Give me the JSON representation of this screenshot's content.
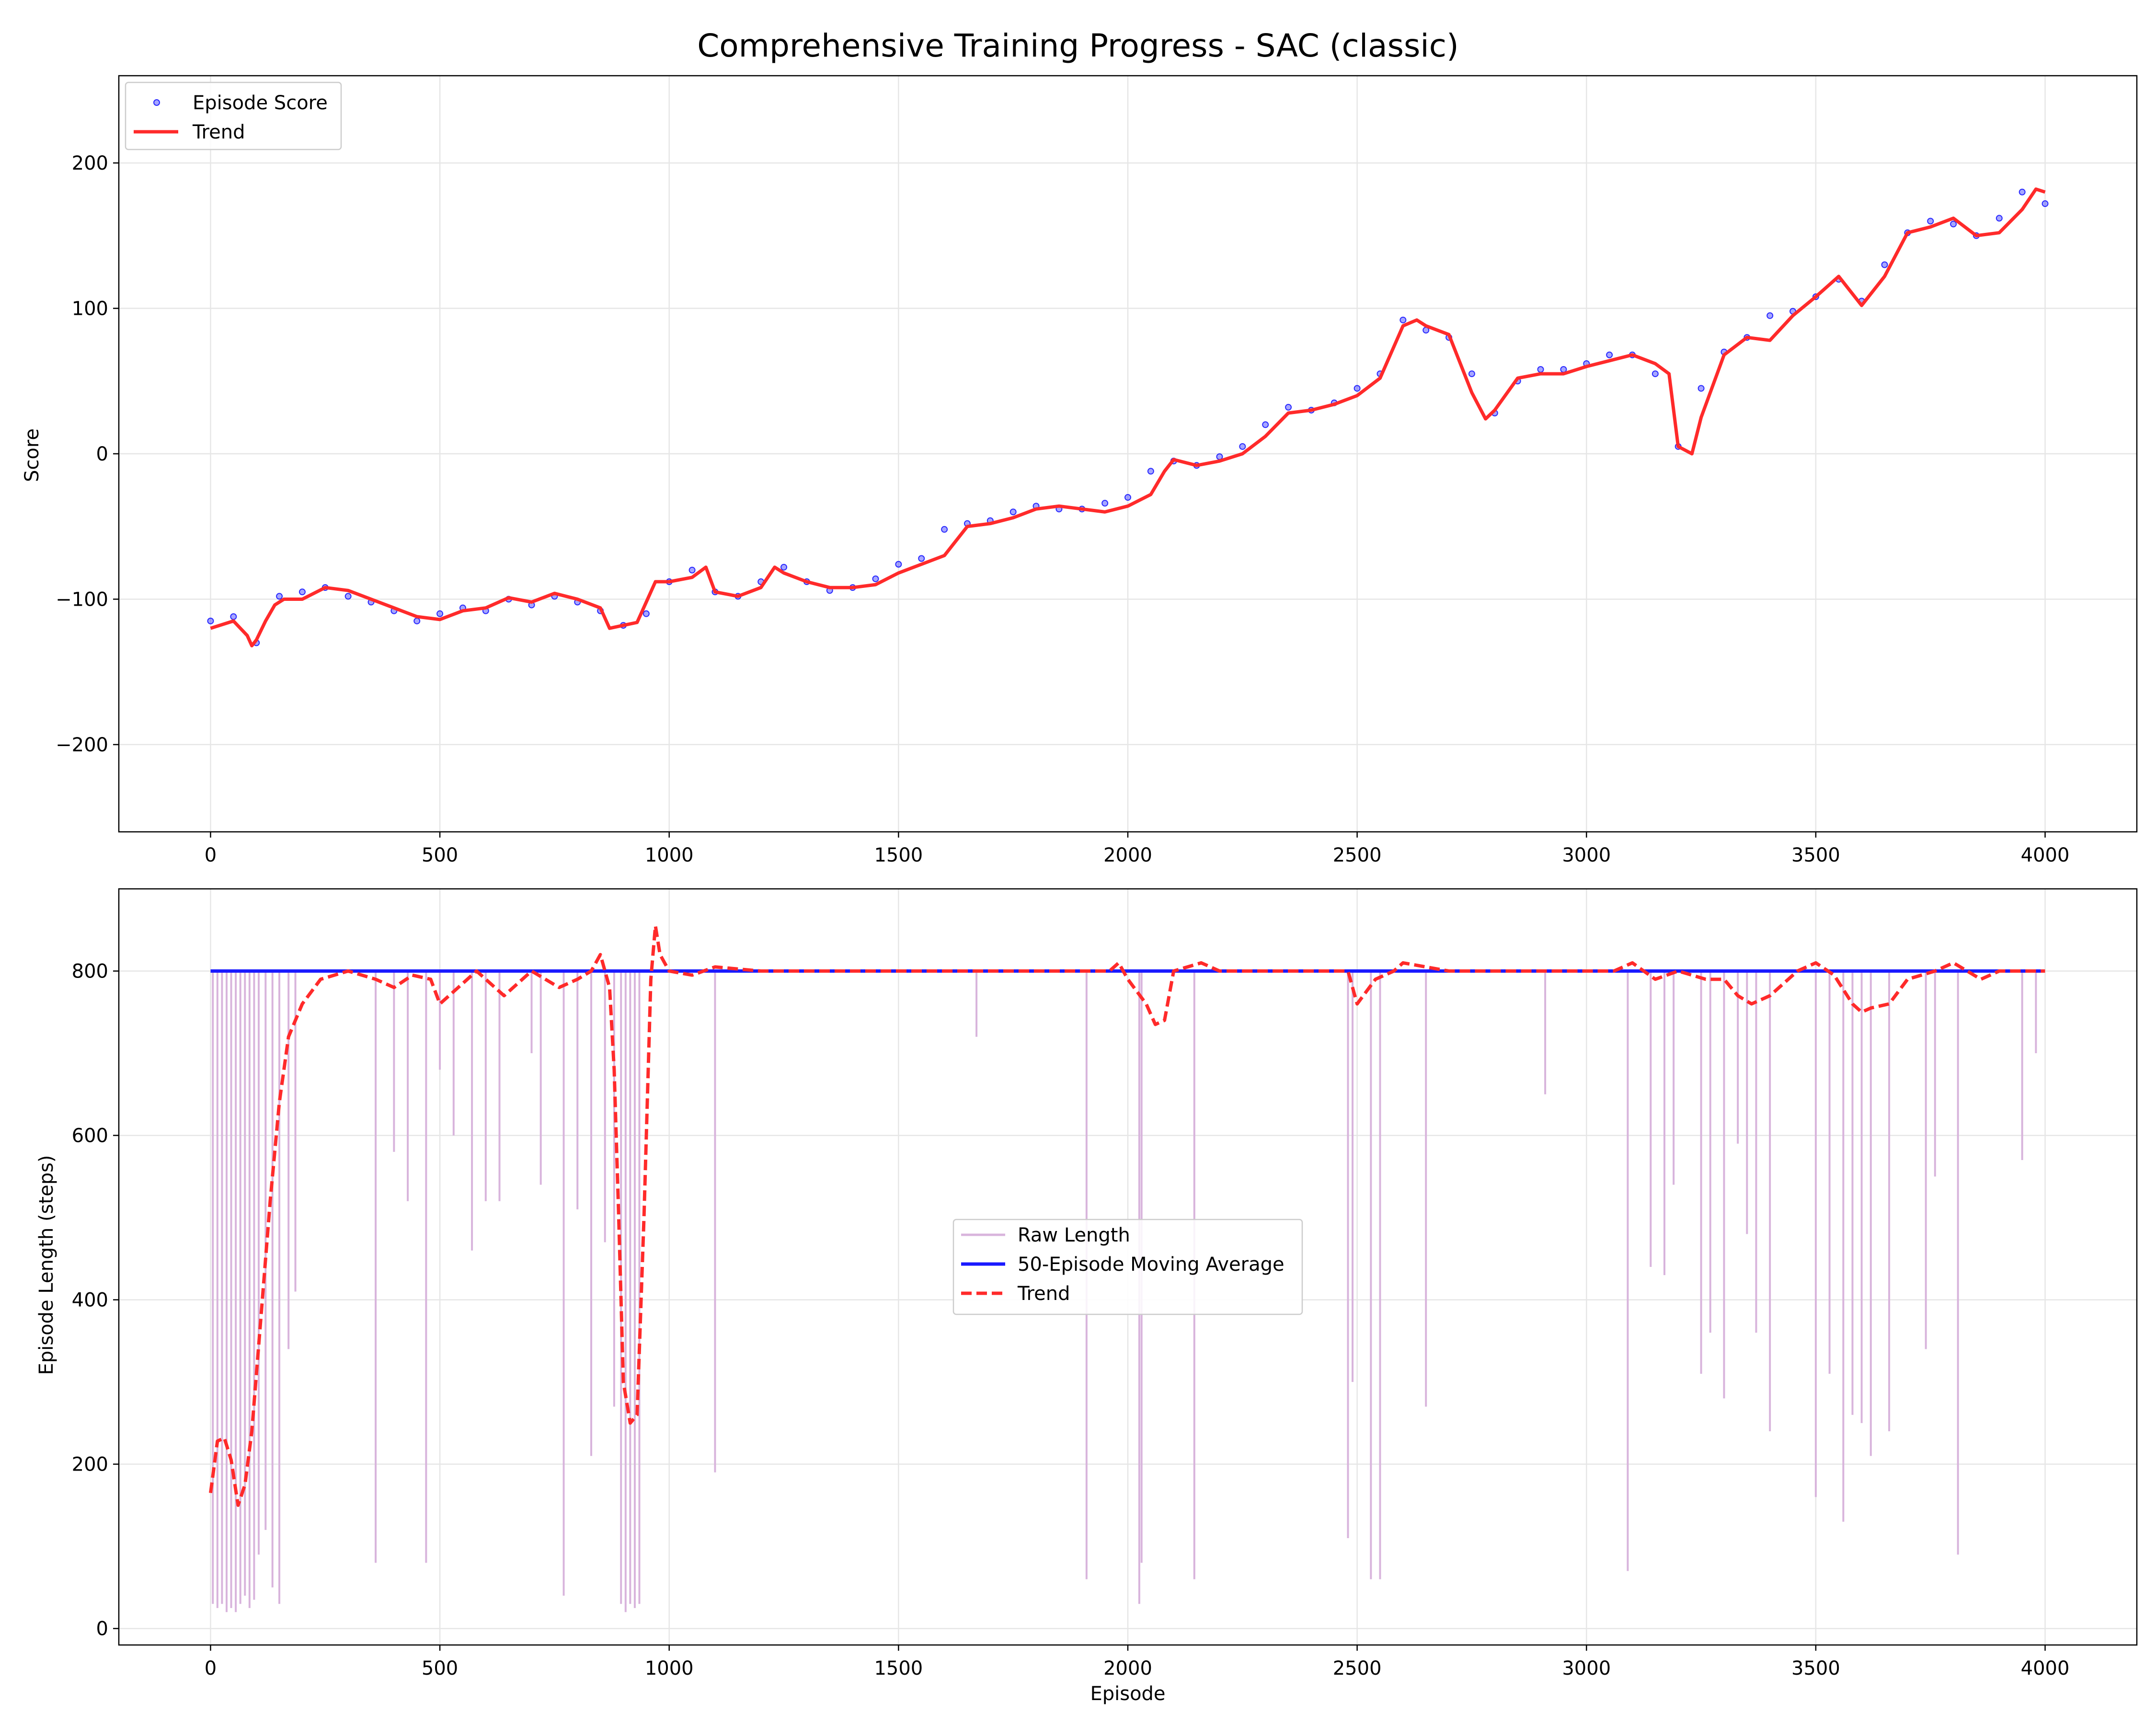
{
  "title": "Comprehensive Training Progress - SAC (classic)",
  "colors": {
    "score_points": "#0000ff",
    "trend": "#ff2a2a",
    "raw_length": "#d8b4dc",
    "moving_average": "#1a1aff",
    "grid": "#e6e6e6"
  },
  "chart_data": [
    {
      "type": "scatter",
      "title": "",
      "xlabel": "",
      "ylabel": "Score",
      "xlim": [
        -200,
        4200
      ],
      "ylim": [
        -260,
        260
      ],
      "xticks": [
        0,
        500,
        1000,
        1500,
        2000,
        2500,
        3000,
        3500,
        4000
      ],
      "yticks": [
        -200,
        -100,
        0,
        100,
        200
      ],
      "grid": true,
      "legend_position": "top-left",
      "series": [
        {
          "name": "Episode Score",
          "kind": "scatter",
          "note_sampling": "",
          "x": [
            0,
            50,
            100,
            150,
            200,
            250,
            300,
            350,
            400,
            450,
            500,
            550,
            600,
            650,
            700,
            750,
            800,
            850,
            900,
            950,
            1000,
            1050,
            1100,
            1150,
            1200,
            1250,
            1300,
            1350,
            1400,
            1450,
            1500,
            1550,
            1600,
            1650,
            1700,
            1750,
            1800,
            1850,
            1900,
            1950,
            2000,
            2050,
            2100,
            2150,
            2200,
            2250,
            2300,
            2350,
            2400,
            2450,
            2500,
            2550,
            2600,
            2650,
            2700,
            2750,
            2800,
            2850,
            2900,
            2950,
            3000,
            3050,
            3100,
            3150,
            3200,
            3250,
            3300,
            3350,
            3400,
            3450,
            3500,
            3550,
            3600,
            3650,
            3700,
            3750,
            3800,
            3850,
            3900,
            3950,
            4000
          ],
          "y": [
            -115,
            -112,
            -130,
            -98,
            -95,
            -92,
            -98,
            -102,
            -108,
            -115,
            -110,
            -106,
            -108,
            -100,
            -104,
            -98,
            -102,
            -108,
            -118,
            -110,
            -88,
            -80,
            -95,
            -98,
            -88,
            -78,
            -88,
            -94,
            -92,
            -86,
            -76,
            -72,
            -52,
            -48,
            -46,
            -40,
            -36,
            -38,
            -38,
            -34,
            -30,
            -12,
            -5,
            -8,
            -2,
            5,
            20,
            32,
            30,
            35,
            45,
            55,
            92,
            85,
            80,
            55,
            28,
            50,
            58,
            58,
            62,
            68,
            68,
            55,
            5,
            45,
            70,
            80,
            95,
            98,
            108,
            120,
            105,
            130,
            152,
            160,
            158,
            150,
            162,
            180,
            172
          ]
        },
        {
          "name": "Trend",
          "kind": "line",
          "x": [
            0,
            50,
            80,
            90,
            100,
            120,
            140,
            160,
            200,
            250,
            300,
            350,
            400,
            450,
            500,
            550,
            600,
            650,
            700,
            750,
            800,
            850,
            870,
            900,
            930,
            950,
            970,
            1000,
            1050,
            1080,
            1100,
            1150,
            1200,
            1230,
            1250,
            1300,
            1350,
            1400,
            1450,
            1500,
            1550,
            1600,
            1650,
            1700,
            1750,
            1800,
            1850,
            1900,
            1950,
            2000,
            2050,
            2080,
            2100,
            2150,
            2200,
            2250,
            2300,
            2350,
            2400,
            2450,
            2500,
            2550,
            2600,
            2630,
            2650,
            2700,
            2750,
            2780,
            2800,
            2850,
            2900,
            2950,
            3000,
            3050,
            3100,
            3150,
            3180,
            3200,
            3230,
            3250,
            3300,
            3350,
            3400,
            3450,
            3500,
            3550,
            3600,
            3650,
            3700,
            3750,
            3800,
            3850,
            3900,
            3950,
            3980,
            4000
          ],
          "y": [
            -120,
            -115,
            -125,
            -132,
            -128,
            -115,
            -104,
            -100,
            -100,
            -92,
            -94,
            -100,
            -106,
            -112,
            -114,
            -108,
            -106,
            -99,
            -102,
            -96,
            -100,
            -106,
            -120,
            -118,
            -116,
            -102,
            -88,
            -88,
            -85,
            -78,
            -95,
            -98,
            -92,
            -78,
            -82,
            -88,
            -92,
            -92,
            -90,
            -82,
            -76,
            -70,
            -50,
            -48,
            -44,
            -38,
            -36,
            -38,
            -40,
            -36,
            -28,
            -12,
            -4,
            -8,
            -5,
            0,
            12,
            28,
            30,
            34,
            40,
            52,
            88,
            92,
            88,
            82,
            42,
            24,
            30,
            52,
            55,
            55,
            60,
            64,
            68,
            62,
            55,
            5,
            0,
            25,
            68,
            80,
            78,
            95,
            108,
            122,
            102,
            122,
            152,
            156,
            162,
            150,
            152,
            168,
            182,
            180
          ]
        }
      ]
    },
    {
      "type": "line",
      "title": "",
      "xlabel": "Episode",
      "ylabel": "Episode Length (steps)",
      "xlim": [
        -200,
        4200
      ],
      "ylim": [
        -20,
        900
      ],
      "xticks": [
        0,
        500,
        1000,
        1500,
        2000,
        2500,
        3000,
        3500,
        4000
      ],
      "yticks": [
        0,
        200,
        400,
        600,
        800
      ],
      "grid": true,
      "legend_position": "center",
      "series": [
        {
          "name": "Raw Length",
          "kind": "line",
          "baseline": 800,
          "dips_x": [
            5,
            15,
            25,
            35,
            45,
            55,
            65,
            75,
            85,
            95,
            105,
            120,
            135,
            150,
            170,
            185,
            360,
            400,
            430,
            470,
            500,
            530,
            570,
            600,
            630,
            700,
            720,
            770,
            800,
            830,
            860,
            880,
            895,
            905,
            915,
            925,
            935,
            1100,
            1670,
            1910,
            2025,
            2030,
            2145,
            2480,
            2490,
            2530,
            2550,
            2650,
            2910,
            3090,
            3140,
            3170,
            3190,
            3250,
            3270,
            3300,
            3330,
            3350,
            3370,
            3400,
            3500,
            3530,
            3560,
            3580,
            3600,
            3620,
            3660,
            3740,
            3760,
            3810,
            3950,
            3980
          ],
          "dips_y": [
            30,
            25,
            30,
            20,
            25,
            20,
            30,
            40,
            25,
            35,
            90,
            120,
            50,
            30,
            340,
            410,
            80,
            580,
            520,
            80,
            680,
            600,
            460,
            520,
            520,
            700,
            540,
            40,
            510,
            210,
            470,
            270,
            30,
            20,
            30,
            25,
            30,
            190,
            720,
            60,
            30,
            80,
            60,
            110,
            300,
            60,
            60,
            270,
            650,
            70,
            440,
            430,
            540,
            310,
            360,
            280,
            590,
            480,
            360,
            240,
            160,
            310,
            130,
            260,
            250,
            210,
            240,
            340,
            550,
            90,
            570,
            700
          ]
        },
        {
          "name": "50-Episode Moving Average",
          "kind": "line",
          "x": [
            0,
            20,
            40,
            55,
            65,
            75,
            90,
            100,
            110,
            120,
            130,
            140,
            160,
            180,
            200,
            230,
            260,
            300,
            360,
            380,
            420,
            460,
            480,
            500,
            530,
            560,
            580,
            620,
            650,
            700,
            760,
            800,
            830,
            860,
            870,
            880,
            900,
            920,
            930,
            940,
            950,
            960,
            970,
            980,
            1000,
            1050,
            1080,
            1100,
            1140,
            1150,
            1200,
            1700,
            1900,
            1950,
            1960,
            2000,
            2040,
            2050,
            2080,
            2100,
            2200,
            2450,
            2460,
            2500,
            2540,
            2560,
            2600,
            2640,
            2700,
            3000,
            3080,
            3100,
            3200,
            3260,
            3300,
            3340,
            3380,
            3420,
            3440,
            3500,
            3540,
            3560,
            3580,
            3600,
            3620,
            3640,
            3700,
            3760,
            3800,
            3820,
            3860,
            3900,
            3950,
            4000
          ],
          "y": [
            800,
            800,
            800,
            800,
            800,
            800,
            800,
            800,
            800,
            800,
            800,
            800,
            800,
            800,
            800,
            800,
            800,
            800,
            800,
            800,
            800,
            800,
            800,
            800,
            800,
            800,
            800,
            800,
            800,
            800,
            800,
            800,
            800,
            800,
            800,
            800,
            800,
            800,
            800,
            800,
            800,
            800,
            800,
            800,
            800,
            800,
            800,
            800,
            800,
            800,
            800,
            800,
            800,
            800,
            800,
            800,
            800,
            800,
            800,
            800,
            800,
            800,
            800,
            800,
            800,
            800,
            800,
            800,
            800,
            800,
            800,
            800,
            800,
            800,
            800,
            800,
            800,
            800,
            800,
            800,
            800,
            800,
            800,
            800,
            800,
            800,
            800,
            800,
            800,
            800,
            800,
            800,
            800,
            800
          ]
        },
        {
          "name": "Trend",
          "kind": "line",
          "dashed": true,
          "x": [
            0,
            15,
            30,
            45,
            60,
            75,
            90,
            110,
            130,
            150,
            170,
            200,
            240,
            300,
            360,
            400,
            440,
            480,
            500,
            540,
            580,
            640,
            700,
            760,
            800,
            830,
            850,
            870,
            880,
            890,
            900,
            915,
            930,
            945,
            960,
            970,
            980,
            1000,
            1050,
            1100,
            1200,
            1800,
            1860,
            1900,
            1960,
            1980,
            2000,
            2040,
            2060,
            2080,
            2100,
            2160,
            2200,
            2400,
            2450,
            2480,
            2500,
            2540,
            2580,
            2600,
            2700,
            2800,
            2900,
            3000,
            3060,
            3100,
            3150,
            3200,
            3260,
            3300,
            3330,
            3360,
            3400,
            3440,
            3460,
            3500,
            3540,
            3580,
            3600,
            3620,
            3660,
            3700,
            3760,
            3800,
            3830,
            3860,
            3900,
            3950,
            4000
          ],
          "y": [
            165,
            228,
            232,
            205,
            150,
            175,
            240,
            380,
            520,
            640,
            720,
            760,
            790,
            800,
            790,
            780,
            795,
            790,
            760,
            780,
            800,
            770,
            800,
            780,
            790,
            800,
            820,
            780,
            680,
            500,
            300,
            250,
            260,
            500,
            790,
            855,
            820,
            800,
            795,
            805,
            800,
            800,
            800,
            800,
            800,
            810,
            790,
            760,
            735,
            740,
            800,
            810,
            800,
            800,
            800,
            800,
            760,
            790,
            800,
            810,
            800,
            800,
            800,
            800,
            800,
            810,
            790,
            800,
            790,
            790,
            770,
            760,
            770,
            790,
            800,
            810,
            795,
            760,
            750,
            755,
            760,
            790,
            800,
            810,
            800,
            790,
            800,
            800,
            800
          ]
        }
      ]
    }
  ]
}
